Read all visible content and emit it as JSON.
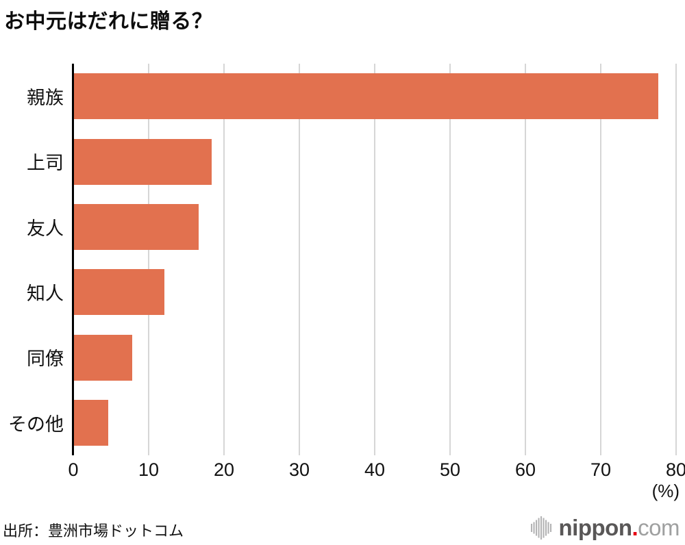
{
  "title": "お中元はだれに贈る？",
  "chart_data": {
    "type": "bar",
    "orientation": "horizontal",
    "title": "お中元はだれに贈る？",
    "categories": [
      "親族",
      "上司",
      "友人",
      "知人",
      "同僚",
      "その他"
    ],
    "values": [
      77.5,
      18.3,
      16.5,
      12.0,
      7.7,
      4.5
    ],
    "xlabel": "(%)",
    "xlim": [
      0,
      80
    ],
    "xticks": [
      0,
      10,
      20,
      30,
      40,
      50,
      60,
      70,
      80
    ],
    "grid": true,
    "legend": "none",
    "bar_color": "#e2714f",
    "gridline_color": "#d6d6d6",
    "axis_color": "#000000"
  },
  "footer": {
    "source": "出所：豊洲市場ドットコム"
  },
  "logo": {
    "icon": "soundwave-bars-icon",
    "name": "nippon",
    "dot": ".",
    "tld": "com",
    "name_color": "#595757",
    "dot_color": "#e60012",
    "tld_color": "#9fa0a0",
    "icon_color": "#b3b3b4"
  }
}
